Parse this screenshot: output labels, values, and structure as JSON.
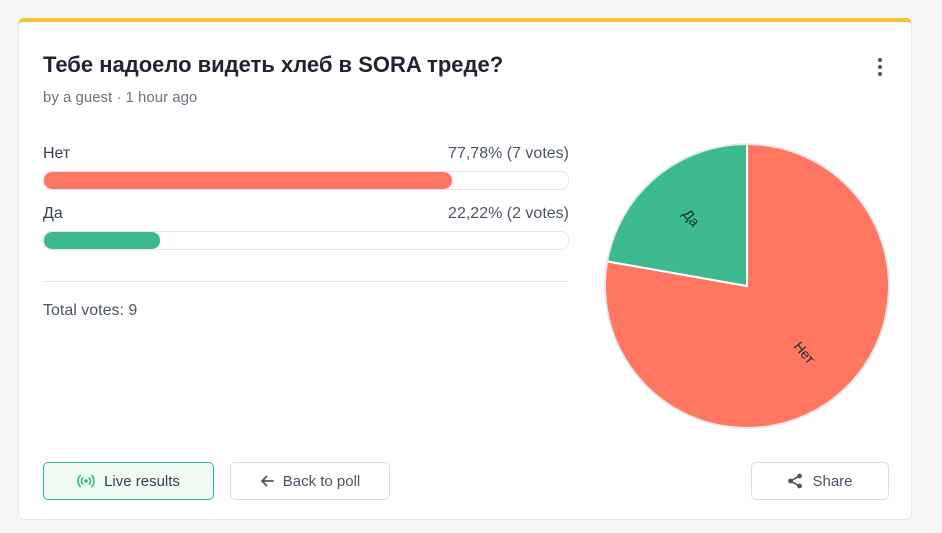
{
  "poll": {
    "title": "Тебе надоело видеть хлеб в SORA треде?",
    "meta": "by a guest · 1 hour ago",
    "menu_icon": "kebab-menu-icon",
    "options": [
      {
        "label": "Нет",
        "stat": "77,78% (7 votes)",
        "percent": 77.78,
        "votes": 7,
        "color": "#ff7661"
      },
      {
        "label": "Да",
        "stat": "22,22% (2 votes)",
        "percent": 22.22,
        "votes": 2,
        "color": "#3dbb8f"
      }
    ],
    "total": "Total votes: 9"
  },
  "chart_data": {
    "type": "pie",
    "labels": [
      "Нет",
      "Да"
    ],
    "values": [
      7,
      2
    ],
    "colors": [
      "#ff7661",
      "#3dbb8f"
    ]
  },
  "actions": {
    "live_label": "Live results",
    "live_icon": "broadcast-icon",
    "back_label": "Back to poll",
    "back_icon": "arrow-left-icon",
    "share_label": "Share",
    "share_icon": "share-icon"
  },
  "colors": {
    "accent_top": "#f2c531",
    "live_border": "#3fb77a"
  }
}
